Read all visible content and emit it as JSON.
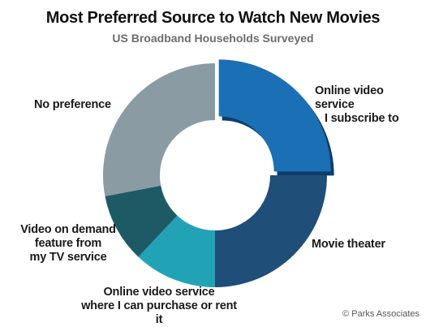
{
  "chart_data": {
    "type": "pie",
    "title": "Most Preferred Source to Watch New Movies",
    "subtitle": "US Broadband Households Surveyed",
    "series": [
      {
        "name": "",
        "values": [
          {
            "label": [
              "Online video service",
              "I subscribe to"
            ],
            "value": 25,
            "color": "#1b6fb5",
            "exploded": true
          },
          {
            "label": [
              "Movie theater"
            ],
            "value": 25,
            "color": "#1f4e79"
          },
          {
            "label": [
              "Online video service",
              "where I can purchase or rent it"
            ],
            "value": 12,
            "color": "#21a3b5"
          },
          {
            "label": [
              "Video on demand",
              "feature from",
              "my TV service"
            ],
            "value": 10,
            "color": "#1d5a66"
          },
          {
            "label": [
              "No preference"
            ],
            "value": 28,
            "color": "#8a9ba4"
          }
        ]
      }
    ],
    "style": "donut",
    "legend": "none",
    "copyright": "© Parks Associates"
  }
}
